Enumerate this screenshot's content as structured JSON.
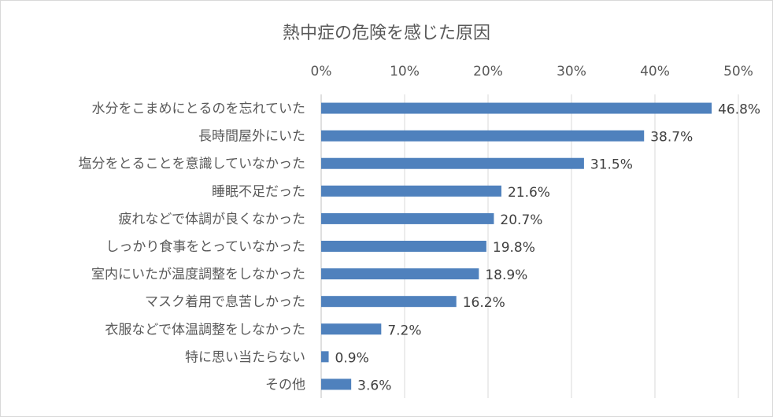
{
  "chart_data": {
    "type": "bar",
    "orientation": "horizontal",
    "title": "熱中症の危険を感じた原因",
    "categories": [
      "水分をこまめにとるのを忘れていた",
      "長時間屋外にいた",
      "塩分をとることを意識していなかった",
      "睡眠不足だった",
      "疲れなどで体調が良くなかった",
      "しっかり食事をとっていなかった",
      "室内にいたが温度調整をしなかった",
      "マスク着用で息苦しかった",
      "衣服などで体温調整をしなかった",
      "特に思い当たらない",
      "その他"
    ],
    "values": [
      46.8,
      38.7,
      31.5,
      21.6,
      20.7,
      19.8,
      18.9,
      16.2,
      7.2,
      0.9,
      3.6
    ],
    "data_labels": [
      "46.8%",
      "38.7%",
      "31.5%",
      "21.6%",
      "20.7%",
      "19.8%",
      "18.9%",
      "16.2%",
      "7.2%",
      "0.9%",
      "3.6%"
    ],
    "xlim": [
      0,
      50
    ],
    "x_ticks": [
      0,
      10,
      20,
      30,
      40,
      50
    ],
    "x_tick_labels": [
      "0%",
      "10%",
      "20%",
      "30%",
      "40%",
      "50%"
    ],
    "x_axis_position": "top",
    "grid": "vertical",
    "legend": "none",
    "bar_color": "#4f81bd"
  }
}
